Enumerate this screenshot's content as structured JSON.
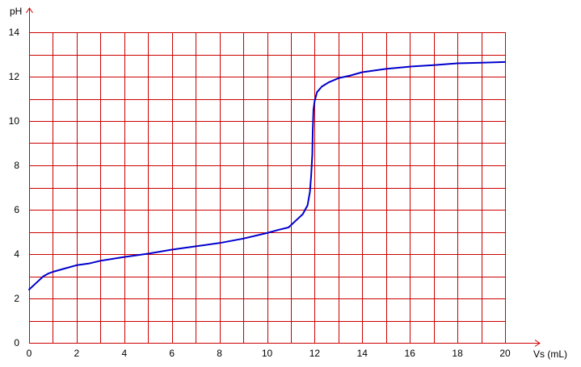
{
  "chart_data": {
    "type": "line",
    "title": "",
    "xlabel": "Vs  (mL)",
    "ylabel": "pH",
    "xlim": [
      0,
      20
    ],
    "ylim": [
      0,
      14
    ],
    "grid": true,
    "x_minor_step": 1,
    "y_minor_step": 1,
    "x_ticks": [
      0,
      2,
      4,
      6,
      8,
      10,
      12,
      14,
      16,
      18,
      20
    ],
    "y_ticks": [
      0,
      2,
      4,
      6,
      8,
      10,
      12,
      14
    ],
    "colors": {
      "grid": "#cc0000",
      "axis": "#cc0000",
      "curve": "#0000cc",
      "background": "#ffffff"
    },
    "series": [
      {
        "x": [
          0,
          0.3,
          0.6,
          0.8,
          1.0,
          1.5,
          2.0,
          2.5,
          3.0,
          4.0,
          5.0,
          6.0,
          7.0,
          8.0,
          9.0,
          10.0,
          10.5,
          10.9,
          11.2,
          11.5,
          11.7,
          11.8,
          11.85,
          11.9,
          11.92,
          11.95,
          12.0,
          12.1,
          12.3,
          12.6,
          13.0,
          13.5,
          14.0,
          15.0,
          16.0,
          17.0,
          18.0,
          19.0,
          20.0
        ],
        "values": [
          2.4,
          2.7,
          3.0,
          3.12,
          3.2,
          3.35,
          3.5,
          3.57,
          3.7,
          3.87,
          4.02,
          4.2,
          4.35,
          4.5,
          4.7,
          4.95,
          5.1,
          5.2,
          5.5,
          5.8,
          6.2,
          6.8,
          7.5,
          8.5,
          9.5,
          10.5,
          10.9,
          11.3,
          11.55,
          11.75,
          11.93,
          12.05,
          12.2,
          12.35,
          12.45,
          12.52,
          12.6,
          12.63,
          12.66
        ]
      }
    ]
  }
}
